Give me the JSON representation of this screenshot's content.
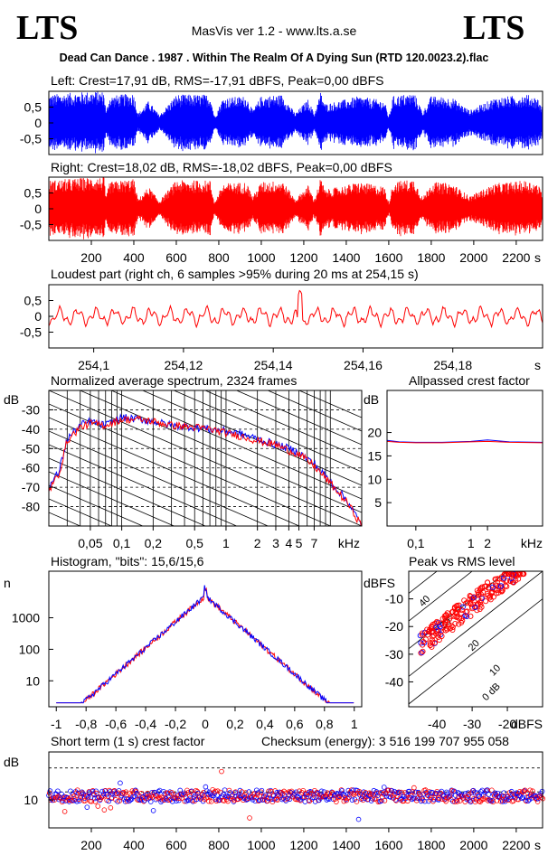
{
  "header": {
    "logo_left": "LTS",
    "logo_right": "LTS",
    "app_title": "MasVis ver 1.2 - www.lts.a.se",
    "file_title": "Dead Can Dance . 1987 . Within The Realm Of A Dying Sun (RTD 120.0023.2).flac"
  },
  "colors": {
    "left": "#0000ff",
    "right": "#ff0000",
    "grid": "#000000"
  },
  "chart_data": [
    {
      "type": "line",
      "id": "left_waveform",
      "title": "Left: Crest=17,91 dB, RMS=-17,91 dBFS, Peak=0,00 dBFS",
      "series": [
        {
          "color": "#0000ff"
        }
      ],
      "y_ticks": [
        "0,5",
        "0",
        "-0,5"
      ],
      "y_tick_values": [
        0.5,
        0,
        -0.5
      ],
      "ylim": [
        -1,
        1
      ],
      "xlim": [
        0,
        2324
      ],
      "envelope": [
        [
          0,
          0.9
        ],
        [
          100,
          0.95
        ],
        [
          200,
          1.0
        ],
        [
          260,
          1.0
        ],
        [
          270,
          0.35
        ],
        [
          285,
          0.85
        ],
        [
          400,
          0.95
        ],
        [
          420,
          0.3
        ],
        [
          470,
          0.7
        ],
        [
          520,
          0.25
        ],
        [
          600,
          0.9
        ],
        [
          760,
          0.9
        ],
        [
          780,
          0.2
        ],
        [
          820,
          0.8
        ],
        [
          930,
          0.85
        ],
        [
          960,
          0.4
        ],
        [
          1000,
          0.85
        ],
        [
          1100,
          0.9
        ],
        [
          1160,
          0.3
        ],
        [
          1220,
          0.75
        ],
        [
          1250,
          0.3
        ],
        [
          1280,
          1.0
        ],
        [
          1300,
          0.6
        ],
        [
          1400,
          0.75
        ],
        [
          1460,
          0.85
        ],
        [
          1580,
          0.7
        ],
        [
          1600,
          0.2
        ],
        [
          1620,
          0.85
        ],
        [
          1720,
          0.95
        ],
        [
          1760,
          0.35
        ],
        [
          1800,
          0.85
        ],
        [
          1900,
          0.8
        ],
        [
          1980,
          0.4
        ],
        [
          2100,
          0.8
        ],
        [
          2250,
          0.9
        ],
        [
          2300,
          0.8
        ],
        [
          2324,
          0.5
        ]
      ]
    },
    {
      "type": "line",
      "id": "right_waveform",
      "title": "Right: Crest=18,02 dB, RMS=-18,02 dBFS, Peak=0,00 dBFS",
      "series": [
        {
          "color": "#ff0000"
        }
      ],
      "y_ticks": [
        "0,5",
        "0",
        "-0,5"
      ],
      "y_tick_values": [
        0.5,
        0,
        -0.5
      ],
      "ylim": [
        -1,
        1
      ],
      "xlim": [
        0,
        2324
      ],
      "x_ticks": [
        "200",
        "400",
        "600",
        "800",
        "1000",
        "1200",
        "1400",
        "1600",
        "1800",
        "2000",
        "2200"
      ],
      "x_tick_values": [
        200,
        400,
        600,
        800,
        1000,
        1200,
        1400,
        1600,
        1800,
        2000,
        2200
      ],
      "x_unit": "s",
      "envelope": [
        [
          0,
          0.9
        ],
        [
          100,
          0.95
        ],
        [
          200,
          1.0
        ],
        [
          260,
          1.0
        ],
        [
          270,
          0.35
        ],
        [
          285,
          0.85
        ],
        [
          400,
          0.95
        ],
        [
          420,
          0.3
        ],
        [
          470,
          0.7
        ],
        [
          520,
          0.25
        ],
        [
          600,
          0.9
        ],
        [
          760,
          0.9
        ],
        [
          780,
          0.2
        ],
        [
          820,
          0.8
        ],
        [
          930,
          0.85
        ],
        [
          960,
          0.4
        ],
        [
          1000,
          0.85
        ],
        [
          1100,
          0.9
        ],
        [
          1160,
          0.3
        ],
        [
          1220,
          0.75
        ],
        [
          1250,
          0.3
        ],
        [
          1280,
          1.0
        ],
        [
          1300,
          0.6
        ],
        [
          1400,
          0.75
        ],
        [
          1460,
          0.85
        ],
        [
          1580,
          0.7
        ],
        [
          1600,
          0.2
        ],
        [
          1620,
          0.85
        ],
        [
          1720,
          0.95
        ],
        [
          1760,
          0.35
        ],
        [
          1800,
          0.85
        ],
        [
          1900,
          0.8
        ],
        [
          1980,
          0.4
        ],
        [
          2100,
          0.8
        ],
        [
          2250,
          0.9
        ],
        [
          2300,
          0.8
        ],
        [
          2324,
          0.5
        ]
      ]
    },
    {
      "type": "line",
      "id": "loudest_part",
      "title": "Loudest part (right ch, 6 samples >95% during 20 ms at 254,15 s)",
      "series": [
        {
          "color": "#ff0000"
        }
      ],
      "y_ticks": [
        "0,5",
        "0",
        "-0,5"
      ],
      "y_tick_values": [
        0.5,
        0,
        -0.5
      ],
      "ylim": [
        -1,
        1
      ],
      "xlim": [
        254.09,
        254.2
      ],
      "x_ticks": [
        "254,1",
        "254,12",
        "254,14",
        "254,16",
        "254,18"
      ],
      "x_tick_values": [
        254.1,
        254.12,
        254.14,
        254.16,
        254.18
      ],
      "x_unit": "s",
      "peak_at": 254.146
    },
    {
      "type": "line",
      "id": "spectrum",
      "title": "Normalized average spectrum, 2324 frames",
      "ylabel": "dB",
      "y_ticks": [
        "-30",
        "-40",
        "-50",
        "-60",
        "-70",
        "-80"
      ],
      "y_tick_values": [
        -30,
        -40,
        -50,
        -60,
        -70,
        -80
      ],
      "ylim": [
        -90,
        -20
      ],
      "xlim": [
        0.02,
        20
      ],
      "x_ticks": [
        "0,05",
        "0,1",
        "0,2",
        "0,5",
        "1",
        "2",
        "3",
        "4",
        "5",
        "7"
      ],
      "x_tick_values": [
        0.05,
        0.1,
        0.2,
        0.5,
        1,
        2,
        3,
        4,
        5,
        7
      ],
      "x_unit": "kHz",
      "series": [
        {
          "color": "#0000ff",
          "points": [
            [
              0.02,
              -70
            ],
            [
              0.025,
              -62
            ],
            [
              0.03,
              -45
            ],
            [
              0.04,
              -38
            ],
            [
              0.05,
              -36
            ],
            [
              0.07,
              -38
            ],
            [
              0.1,
              -34
            ],
            [
              0.15,
              -35
            ],
            [
              0.2,
              -36
            ],
            [
              0.3,
              -38
            ],
            [
              0.5,
              -39
            ],
            [
              0.7,
              -40
            ],
            [
              1,
              -41
            ],
            [
              1.5,
              -43
            ],
            [
              2,
              -45
            ],
            [
              3,
              -48
            ],
            [
              4,
              -50
            ],
            [
              5,
              -52
            ],
            [
              7,
              -58
            ],
            [
              10,
              -67
            ],
            [
              15,
              -78
            ],
            [
              20,
              -90
            ]
          ]
        },
        {
          "color": "#ff0000",
          "points": [
            [
              0.02,
              -72
            ],
            [
              0.025,
              -63
            ],
            [
              0.03,
              -46
            ],
            [
              0.04,
              -39
            ],
            [
              0.05,
              -37
            ],
            [
              0.07,
              -38
            ],
            [
              0.1,
              -35
            ],
            [
              0.15,
              -35
            ],
            [
              0.2,
              -36
            ],
            [
              0.3,
              -38
            ],
            [
              0.5,
              -39
            ],
            [
              0.7,
              -40
            ],
            [
              1,
              -42
            ],
            [
              1.5,
              -44
            ],
            [
              2,
              -46
            ],
            [
              3,
              -48
            ],
            [
              4,
              -51
            ],
            [
              5,
              -53
            ],
            [
              7,
              -59
            ],
            [
              10,
              -68
            ],
            [
              15,
              -79
            ],
            [
              20,
              -90
            ]
          ]
        }
      ]
    },
    {
      "type": "line",
      "id": "allpassed_crest",
      "title": "Allpassed crest factor",
      "ylabel": "dB",
      "y_ticks": [
        "20",
        "15",
        "10",
        "5"
      ],
      "y_tick_values": [
        20,
        15,
        10,
        5
      ],
      "ylim": [
        0,
        29
      ],
      "xlim": [
        0.03,
        20
      ],
      "x_ticks": [
        "0,1",
        "1",
        "2"
      ],
      "x_tick_values": [
        0.1,
        1,
        2
      ],
      "x_unit": "kHz",
      "series": [
        {
          "color": "#0000ff",
          "points": [
            [
              0.03,
              18.3
            ],
            [
              0.05,
              18.0
            ],
            [
              0.1,
              17.9
            ],
            [
              0.3,
              17.9
            ],
            [
              1,
              18.1
            ],
            [
              2,
              18.4
            ],
            [
              5,
              18.0
            ],
            [
              20,
              17.9
            ]
          ]
        },
        {
          "color": "#ff0000",
          "points": [
            [
              0.03,
              18.1
            ],
            [
              0.05,
              17.9
            ],
            [
              0.1,
              17.8
            ],
            [
              0.3,
              17.8
            ],
            [
              1,
              18.0
            ],
            [
              2,
              18.1
            ],
            [
              5,
              17.9
            ],
            [
              20,
              17.8
            ]
          ]
        }
      ]
    },
    {
      "type": "line",
      "id": "histogram",
      "title": "Histogram, \"bits\": 15,6/15,6",
      "ylabel": "n",
      "y_ticks": [
        "1000",
        "100",
        "10"
      ],
      "y_tick_values": [
        1000,
        100,
        10
      ],
      "ylim": [
        1.5,
        30000
      ],
      "xlim": [
        -1.05,
        1.05
      ],
      "x_ticks": [
        "-1",
        "-0,8",
        "-0,6",
        "-0,4",
        "-0,2",
        "0",
        "0,2",
        "0,4",
        "0,6",
        "0,8",
        "1"
      ],
      "x_tick_values": [
        -1,
        -0.8,
        -0.6,
        -0.4,
        -0.2,
        0,
        0.2,
        0.4,
        0.6,
        0.8,
        1
      ],
      "series": [
        {
          "color": "#ff0000"
        },
        {
          "color": "#0000ff"
        }
      ]
    },
    {
      "type": "scatter",
      "id": "peak_vs_rms",
      "title": "Peak vs RMS level",
      "ylabel": "dBFS",
      "xlabel": "dBFS",
      "y_ticks": [
        "-10",
        "-20",
        "-30",
        "-40"
      ],
      "y_tick_values": [
        -10,
        -20,
        -30,
        -40
      ],
      "x_ticks": [
        "-40",
        "-30",
        "-20"
      ],
      "x_tick_values": [
        -40,
        -30,
        -20
      ],
      "xlim": [
        -48,
        -10
      ],
      "ylim": [
        -49,
        0
      ],
      "diag_labels": [
        "40",
        "30",
        "20",
        "10",
        "0 dB"
      ],
      "series": [
        {
          "color": "#ff0000"
        },
        {
          "color": "#0000ff"
        }
      ]
    },
    {
      "type": "scatter",
      "id": "short_term_crest",
      "title": "Short term (1 s) crest factor",
      "checksum": "Checksum (energy):  3 516 199 707 955 058",
      "ylabel": "dB",
      "y_ticks": [
        "10"
      ],
      "y_tick_values": [
        10
      ],
      "ylim": [
        3,
        22
      ],
      "xlim": [
        0,
        2324
      ],
      "x_ticks": [
        "200",
        "400",
        "600",
        "800",
        "1000",
        "1200",
        "1400",
        "1600",
        "1800",
        "2000",
        "2200"
      ],
      "x_tick_values": [
        200,
        400,
        600,
        800,
        1000,
        1200,
        1400,
        1600,
        1800,
        2000,
        2200
      ],
      "x_unit": "s",
      "series": [
        {
          "color": "#0000ff"
        },
        {
          "color": "#ff0000"
        }
      ]
    }
  ]
}
